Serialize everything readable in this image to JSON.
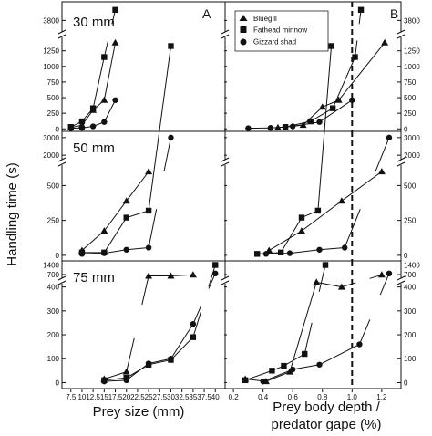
{
  "figure": {
    "ylabel": "Handling time (s)",
    "xlabel_left": "Prey size (mm)",
    "xlabel_right_line1": "Prey body depth /",
    "xlabel_right_line2": "predator gape (%)",
    "letter_left": "A",
    "letter_right": "B"
  },
  "legend": [
    {
      "name": "Bluegill",
      "marker": "triangle"
    },
    {
      "name": "Fathead minnow",
      "marker": "square"
    },
    {
      "name": "Gizzard shad",
      "marker": "circle"
    }
  ],
  "chart_data": [
    {
      "type": "line",
      "panel": "A, 30 mm",
      "title": "30 mm",
      "x_ticks": [
        "7.5",
        "10",
        "12.5",
        "15",
        "17.5",
        "20",
        "22.5",
        "25",
        "27.5",
        "30",
        "32.5",
        "35",
        "37.5",
        "40"
      ],
      "y_ticks_lower": [
        "0",
        "250",
        "500",
        "750",
        "1000",
        "1250"
      ],
      "y_ticks_upper": [
        "3800"
      ],
      "series": [
        {
          "name": "Bluegill",
          "marker": "triangle",
          "x": [
            7.5,
            10,
            12.5,
            15,
            17.5
          ],
          "y": [
            20,
            60,
            300,
            460,
            1380
          ]
        },
        {
          "name": "Fathead minnow",
          "marker": "square",
          "x": [
            7.5,
            10,
            12.5,
            15,
            17.5
          ],
          "y": [
            30,
            120,
            330,
            1150,
            3900
          ]
        },
        {
          "name": "Gizzard shad",
          "marker": "circle",
          "x": [
            7.5,
            10,
            12.5,
            15,
            17.5
          ],
          "y": [
            10,
            15,
            40,
            110,
            460
          ]
        }
      ]
    },
    {
      "type": "line",
      "panel": "B, 30 mm",
      "x_ticks": [
        "0.2",
        "0.4",
        "0.6",
        "0.8",
        "1.0",
        "1.2"
      ],
      "y_ticks_lower": [
        "0",
        "250",
        "500",
        "750",
        "1000",
        "1250"
      ],
      "y_ticks_upper": [
        "3800"
      ],
      "reference_line_x": 1.0,
      "series": [
        {
          "name": "Bluegill",
          "marker": "triangle",
          "x": [
            0.5,
            0.67,
            0.8,
            0.91,
            1.22
          ],
          "y": [
            20,
            60,
            350,
            460,
            1380
          ]
        },
        {
          "name": "Fathead minnow",
          "marker": "square",
          "x": [
            0.55,
            0.72,
            0.87,
            1.02,
            1.06
          ],
          "y": [
            30,
            120,
            330,
            1150,
            3900
          ]
        },
        {
          "name": "Gizzard shad",
          "marker": "circle",
          "x": [
            0.3,
            0.45,
            0.6,
            0.78,
            1.0
          ],
          "y": [
            10,
            15,
            40,
            110,
            460
          ]
        }
      ]
    },
    {
      "type": "line",
      "panel": "A, 50 mm",
      "title": "50 mm",
      "x_ticks": [
        "7.5",
        "10",
        "12.5",
        "15",
        "17.5",
        "20",
        "22.5",
        "25",
        "27.5",
        "30",
        "32.5",
        "35",
        "37.5",
        "40"
      ],
      "y_ticks_lower": [
        "0",
        "250",
        "500"
      ],
      "y_ticks_upper": [
        "2000",
        "3000"
      ],
      "series": [
        {
          "name": "Bluegill",
          "marker": "triangle",
          "x": [
            10,
            15,
            20,
            25
          ],
          "y": [
            35,
            175,
            390,
            600
          ]
        },
        {
          "name": "Fathead minnow",
          "marker": "square",
          "x": [
            10,
            15,
            20,
            25,
            30
          ],
          "y": [
            20,
            20,
            270,
            320,
            1500
          ]
        },
        {
          "name": "Gizzard shad",
          "marker": "circle",
          "x": [
            10,
            15,
            20,
            25,
            30
          ],
          "y": [
            10,
            15,
            40,
            55,
            3000
          ]
        }
      ]
    },
    {
      "type": "line",
      "panel": "B, 50 mm",
      "x_ticks": [
        "0.2",
        "0.4",
        "0.6",
        "0.8",
        "1.0",
        "1.2"
      ],
      "y_ticks_lower": [
        "0",
        "250",
        "500"
      ],
      "y_ticks_upper": [
        "2000",
        "3000"
      ],
      "reference_line_x": 1.0,
      "series": [
        {
          "name": "Bluegill",
          "marker": "triangle",
          "x": [
            0.44,
            0.66,
            0.93,
            1.2
          ],
          "y": [
            35,
            175,
            390,
            600
          ]
        },
        {
          "name": "Fathead minnow",
          "marker": "square",
          "x": [
            0.36,
            0.52,
            0.66,
            0.77,
            0.86
          ],
          "y": [
            10,
            20,
            270,
            320,
            1500
          ]
        },
        {
          "name": "Gizzard shad",
          "marker": "circle",
          "x": [
            0.42,
            0.58,
            0.78,
            0.95,
            1.25
          ],
          "y": [
            10,
            15,
            40,
            55,
            3000
          ]
        }
      ]
    },
    {
      "type": "line",
      "panel": "A, 75 mm",
      "title": "75 mm",
      "x_ticks": [
        "7.5",
        "10",
        "12.5",
        "15",
        "17.5",
        "20",
        "22.5",
        "25",
        "27.5",
        "30",
        "32.5",
        "35",
        "37.5",
        "40"
      ],
      "y_ticks_lower": [
        "0",
        "100",
        "200",
        "300",
        "400"
      ],
      "y_ticks_upper": [
        "700",
        "1400"
      ],
      "series": [
        {
          "name": "Bluegill",
          "marker": "triangle",
          "x": [
            15,
            20,
            25,
            30,
            35
          ],
          "y": [
            15,
            45,
            600,
            600,
            680
          ]
        },
        {
          "name": "Fathead minnow",
          "marker": "square",
          "x": [
            15,
            20,
            25,
            30,
            35,
            40
          ],
          "y": [
            10,
            20,
            75,
            95,
            190,
            1400
          ]
        },
        {
          "name": "Gizzard shad",
          "marker": "circle",
          "x": [
            15,
            20,
            25,
            30,
            35,
            40
          ],
          "y": [
            5,
            10,
            80,
            100,
            245,
            780
          ]
        }
      ]
    },
    {
      "type": "line",
      "panel": "B, 75 mm",
      "x_ticks": [
        "0.2",
        "0.4",
        "0.6",
        "0.8",
        "1.0",
        "1.2"
      ],
      "y_ticks_lower": [
        "0",
        "100",
        "200",
        "300",
        "400"
      ],
      "y_ticks_upper": [
        "700",
        "1400"
      ],
      "reference_line_x": 1.0,
      "series": [
        {
          "name": "Bluegill",
          "marker": "triangle",
          "x": [
            0.28,
            0.42,
            0.58,
            0.76,
            0.93,
            1.2
          ],
          "y": [
            15,
            5,
            45,
            420,
            400,
            680
          ]
        },
        {
          "name": "Fathead minnow",
          "marker": "square",
          "x": [
            0.28,
            0.46,
            0.54,
            0.68,
            0.82
          ],
          "y": [
            10,
            50,
            70,
            120,
            1400
          ]
        },
        {
          "name": "Gizzard shad",
          "marker": "circle",
          "x": [
            0.4,
            0.6,
            0.78,
            1.05,
            1.25
          ],
          "y": [
            5,
            55,
            75,
            160,
            780
          ]
        }
      ]
    }
  ]
}
